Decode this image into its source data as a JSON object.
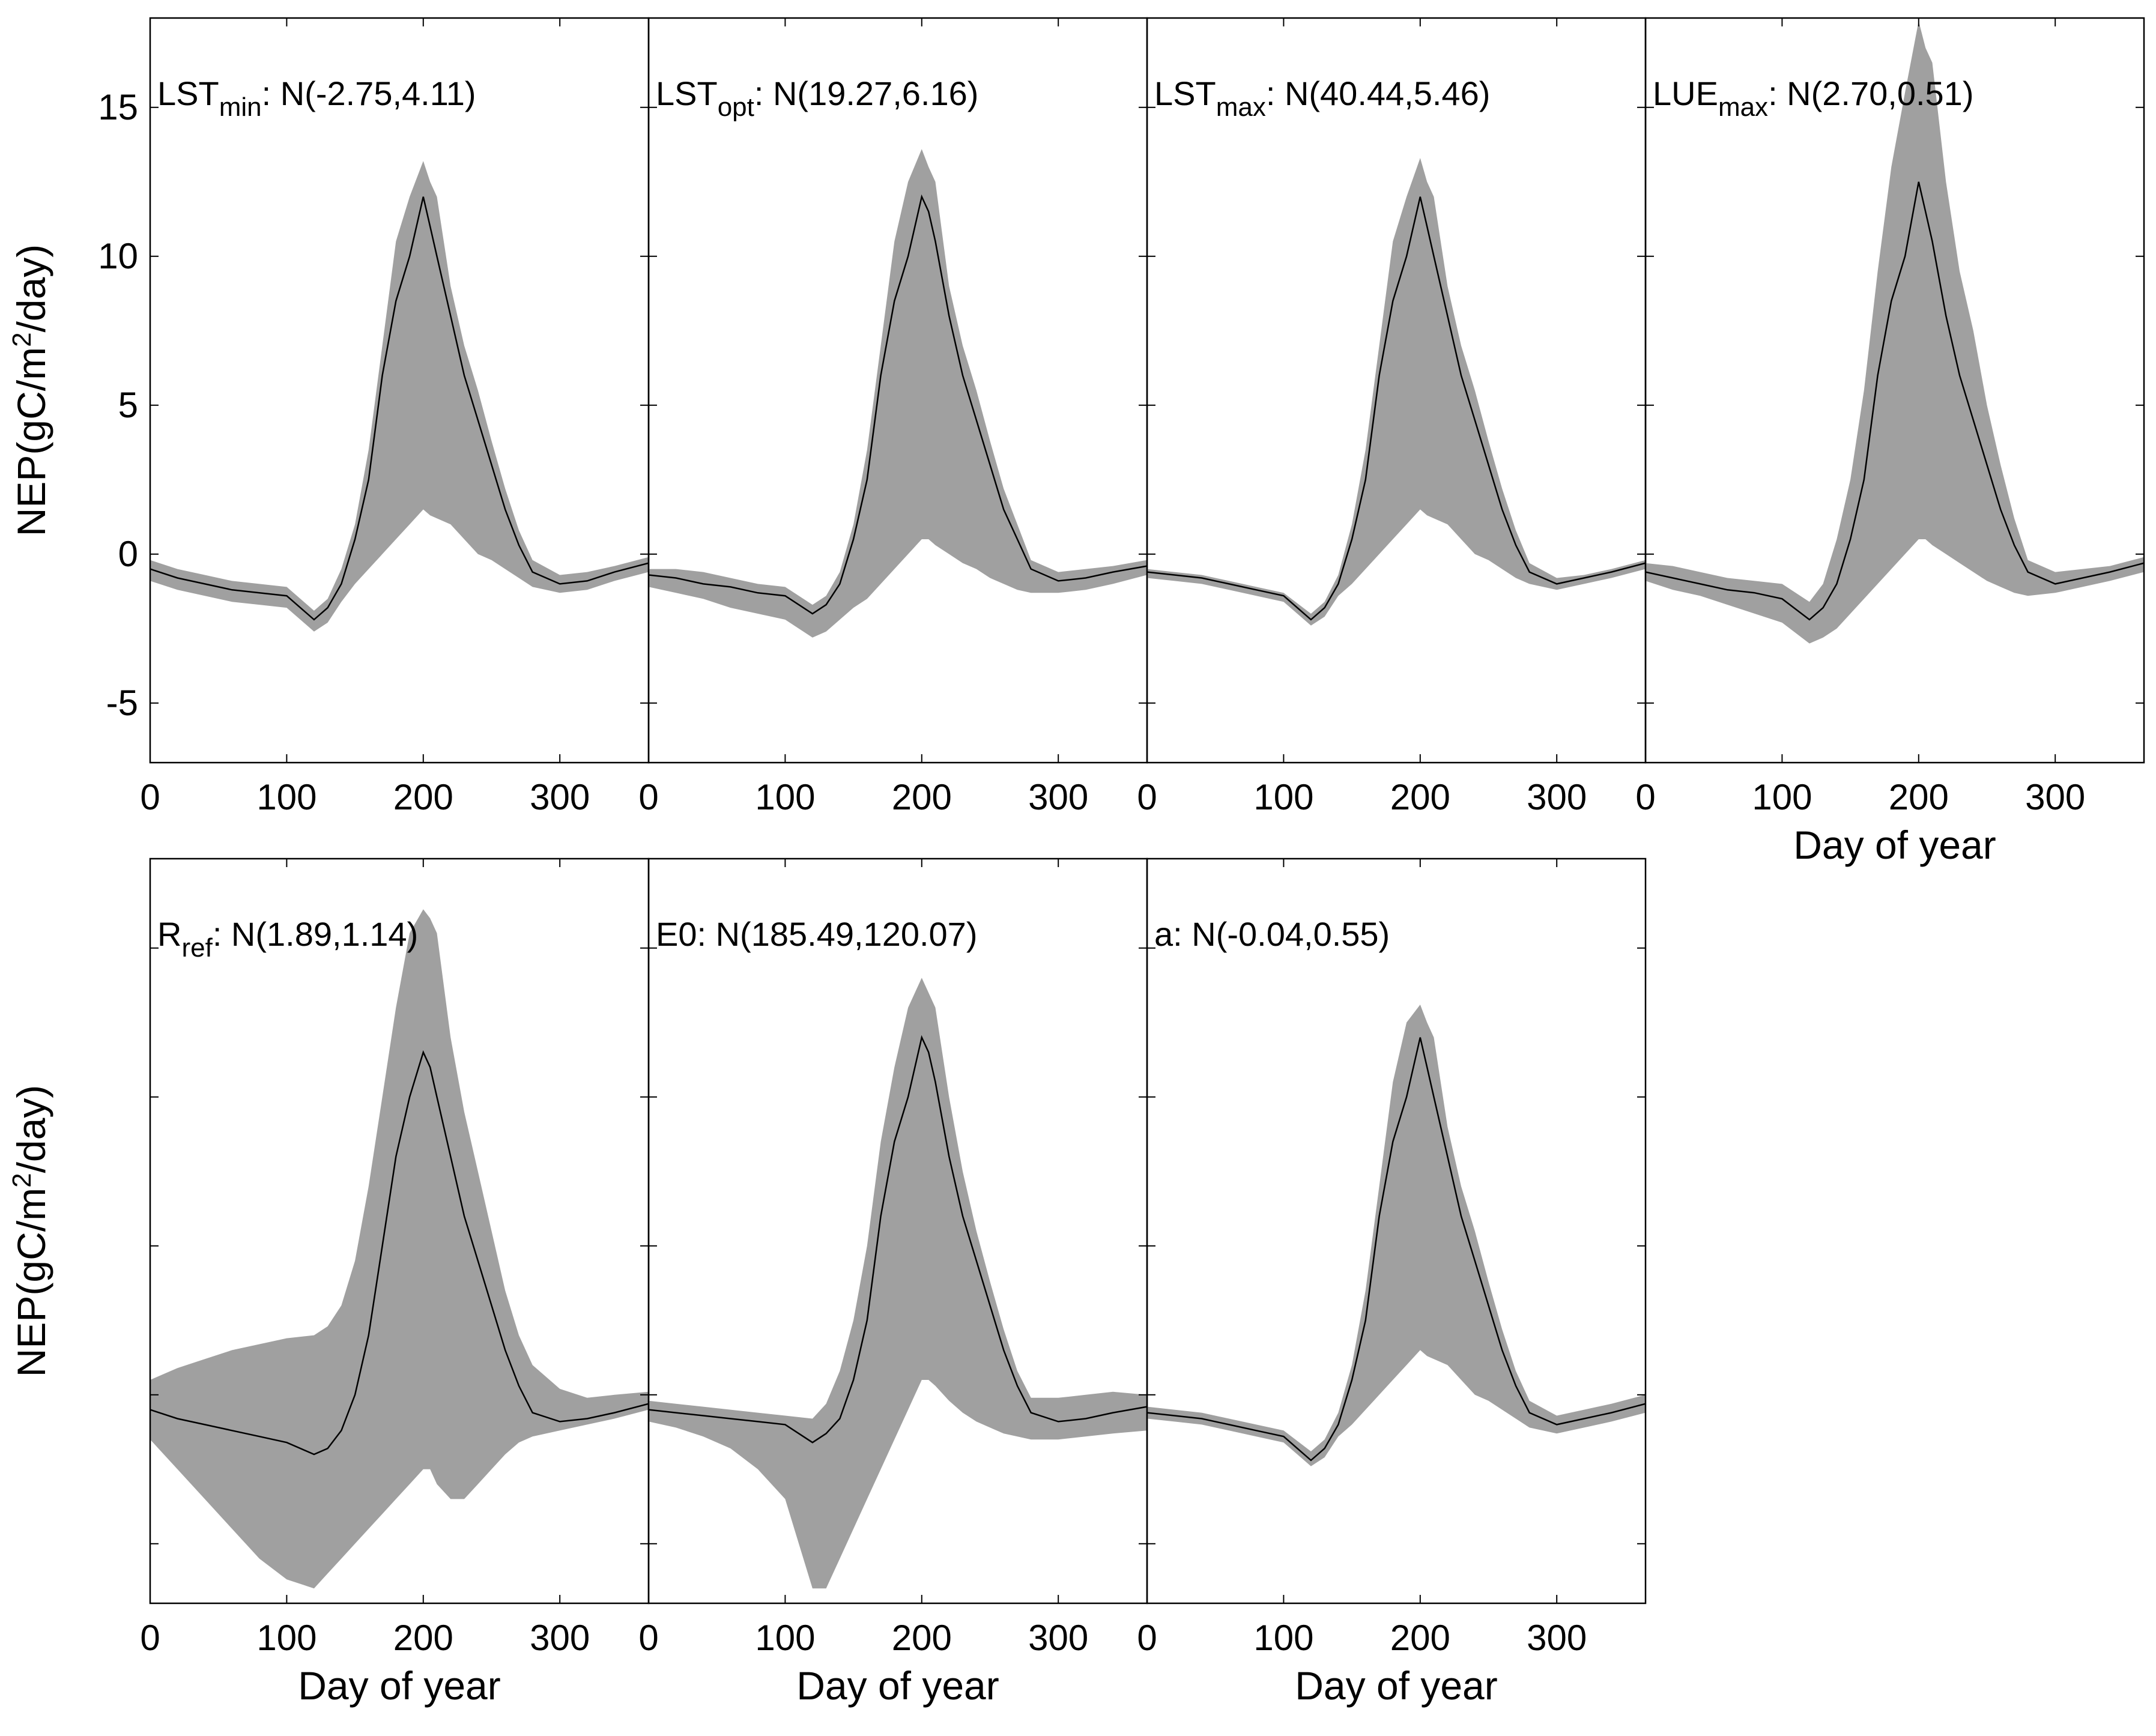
{
  "colors": {
    "band": "#a0a0a0",
    "line": "#000000",
    "frame": "#000000",
    "background": "#ffffff"
  },
  "chart_data": {
    "type": "line",
    "description_note": "7 panels of NEP daily time series with a grey uncertainty band (5th-95th percentile ensemble) and black median line",
    "shared_axes": {
      "xlabel": "Day of year",
      "ylabel": "NEP(gC/m2/day)",
      "xlim": [
        0,
        365
      ],
      "ylim": [
        -7,
        18
      ],
      "xticks": [
        "0",
        "100",
        "200",
        "300"
      ],
      "yticks": [
        "-5",
        "0",
        "5",
        "10",
        "15"
      ]
    },
    "panels": [
      {
        "id": "lst-min",
        "label": {
          "base": "LST",
          "sub": "min",
          "dist": ": N(-2.75,4.11)"
        },
        "series": {
          "x": [
            0,
            20,
            40,
            60,
            80,
            100,
            120,
            130,
            140,
            150,
            160,
            170,
            180,
            190,
            200,
            205,
            210,
            220,
            230,
            240,
            250,
            260,
            270,
            280,
            300,
            320,
            340,
            365
          ],
          "median": [
            -0.5,
            -0.8,
            -1.0,
            -1.2,
            -1.3,
            -1.4,
            -2.2,
            -1.8,
            -1.0,
            0.5,
            2.5,
            6.0,
            8.5,
            10.0,
            12.0,
            11.0,
            10.0,
            8.0,
            6.0,
            4.5,
            3.0,
            1.5,
            0.3,
            -0.6,
            -1.0,
            -0.9,
            -0.6,
            -0.3
          ],
          "band_low": [
            -0.9,
            -1.2,
            -1.4,
            -1.6,
            -1.7,
            -1.8,
            -2.6,
            -2.3,
            -1.6,
            -1.0,
            -0.5,
            0.0,
            0.5,
            1.0,
            1.5,
            1.3,
            1.2,
            1.0,
            0.5,
            0.0,
            -0.2,
            -0.5,
            -0.8,
            -1.1,
            -1.3,
            -1.2,
            -0.9,
            -0.6
          ],
          "band_high": [
            -0.2,
            -0.5,
            -0.7,
            -0.9,
            -1.0,
            -1.1,
            -1.9,
            -1.5,
            -0.5,
            1.0,
            3.5,
            7.0,
            10.5,
            12.0,
            13.2,
            12.5,
            12.0,
            9.0,
            7.0,
            5.5,
            3.8,
            2.2,
            0.8,
            -0.2,
            -0.7,
            -0.6,
            -0.4,
            -0.1
          ]
        }
      },
      {
        "id": "lst-opt",
        "label": {
          "base": "LST",
          "sub": "opt",
          "dist": ": N(19.27,6.16)"
        },
        "series": {
          "x": [
            0,
            20,
            40,
            60,
            80,
            100,
            120,
            130,
            140,
            150,
            160,
            170,
            180,
            190,
            200,
            205,
            210,
            220,
            230,
            240,
            250,
            260,
            270,
            280,
            300,
            320,
            340,
            365
          ],
          "median": [
            -0.7,
            -0.8,
            -1.0,
            -1.1,
            -1.3,
            -1.4,
            -2.0,
            -1.7,
            -1.0,
            0.5,
            2.5,
            6.0,
            8.5,
            10.0,
            12.0,
            11.5,
            10.5,
            8.0,
            6.0,
            4.5,
            3.0,
            1.5,
            0.5,
            -0.5,
            -0.9,
            -0.8,
            -0.6,
            -0.4
          ],
          "band_low": [
            -1.1,
            -1.3,
            -1.5,
            -1.8,
            -2.0,
            -2.2,
            -2.8,
            -2.6,
            -2.2,
            -1.8,
            -1.5,
            -1.0,
            -0.5,
            0.0,
            0.5,
            0.5,
            0.3,
            0.0,
            -0.3,
            -0.5,
            -0.8,
            -1.0,
            -1.2,
            -1.3,
            -1.3,
            -1.2,
            -1.0,
            -0.7
          ],
          "band_high": [
            -0.5,
            -0.5,
            -0.6,
            -0.8,
            -1.0,
            -1.1,
            -1.7,
            -1.4,
            -0.6,
            1.0,
            3.5,
            7.0,
            10.5,
            12.5,
            13.6,
            13.0,
            12.5,
            9.0,
            7.0,
            5.5,
            3.8,
            2.2,
            1.0,
            -0.2,
            -0.6,
            -0.5,
            -0.4,
            -0.2
          ]
        }
      },
      {
        "id": "lst-max",
        "label": {
          "base": "LST",
          "sub": "max",
          "dist": ": N(40.44,5.46)"
        },
        "series": {
          "x": [
            0,
            20,
            40,
            60,
            80,
            100,
            120,
            130,
            140,
            150,
            160,
            170,
            180,
            190,
            200,
            205,
            210,
            220,
            230,
            240,
            250,
            260,
            270,
            280,
            300,
            320,
            340,
            365
          ],
          "median": [
            -0.6,
            -0.7,
            -0.8,
            -1.0,
            -1.2,
            -1.4,
            -2.2,
            -1.8,
            -1.0,
            0.5,
            2.5,
            6.0,
            8.5,
            10.0,
            12.0,
            11.0,
            10.0,
            8.0,
            6.0,
            4.5,
            3.0,
            1.5,
            0.3,
            -0.6,
            -1.0,
            -0.8,
            -0.6,
            -0.3
          ],
          "band_low": [
            -0.8,
            -0.9,
            -1.0,
            -1.2,
            -1.4,
            -1.6,
            -2.4,
            -2.1,
            -1.4,
            -1.0,
            -0.5,
            0.0,
            0.5,
            1.0,
            1.5,
            1.3,
            1.2,
            1.0,
            0.5,
            0.0,
            -0.2,
            -0.5,
            -0.8,
            -1.0,
            -1.2,
            -1.0,
            -0.8,
            -0.5
          ],
          "band_high": [
            -0.5,
            -0.6,
            -0.7,
            -0.9,
            -1.1,
            -1.3,
            -2.0,
            -1.6,
            -0.7,
            1.0,
            3.5,
            7.0,
            10.5,
            12.0,
            13.3,
            12.5,
            12.0,
            9.0,
            7.0,
            5.5,
            3.8,
            2.2,
            0.8,
            -0.3,
            -0.8,
            -0.7,
            -0.5,
            -0.2
          ]
        }
      },
      {
        "id": "lue-max",
        "label": {
          "base": "LUE",
          "sub": "max",
          "dist": ": N(2.70,0.51)"
        },
        "series": {
          "x": [
            0,
            20,
            40,
            60,
            80,
            100,
            120,
            130,
            140,
            150,
            160,
            170,
            180,
            190,
            200,
            205,
            210,
            220,
            230,
            240,
            250,
            260,
            270,
            280,
            300,
            320,
            340,
            365
          ],
          "median": [
            -0.6,
            -0.8,
            -1.0,
            -1.2,
            -1.3,
            -1.5,
            -2.2,
            -1.8,
            -1.0,
            0.5,
            2.5,
            6.0,
            8.5,
            10.0,
            12.5,
            11.5,
            10.5,
            8.0,
            6.0,
            4.5,
            3.0,
            1.5,
            0.3,
            -0.6,
            -1.0,
            -0.8,
            -0.6,
            -0.3
          ],
          "band_low": [
            -0.9,
            -1.2,
            -1.4,
            -1.7,
            -2.0,
            -2.3,
            -3.0,
            -2.8,
            -2.5,
            -2.0,
            -1.5,
            -1.0,
            -0.5,
            0.0,
            0.5,
            0.5,
            0.3,
            0.0,
            -0.3,
            -0.6,
            -0.9,
            -1.1,
            -1.3,
            -1.4,
            -1.3,
            -1.1,
            -0.9,
            -0.6
          ],
          "band_high": [
            -0.3,
            -0.4,
            -0.6,
            -0.8,
            -0.9,
            -1.0,
            -1.6,
            -1.0,
            0.5,
            2.5,
            5.5,
            9.5,
            13.0,
            15.5,
            17.9,
            17.0,
            16.5,
            12.5,
            9.5,
            7.5,
            5.0,
            3.0,
            1.2,
            -0.2,
            -0.6,
            -0.5,
            -0.4,
            -0.1
          ]
        }
      },
      {
        "id": "r-ref",
        "label": {
          "base": "R",
          "sub": "ref",
          "dist": ": N(1.89,1.14)"
        },
        "series": {
          "x": [
            0,
            20,
            40,
            60,
            80,
            100,
            120,
            130,
            140,
            150,
            160,
            170,
            180,
            190,
            200,
            205,
            210,
            220,
            230,
            240,
            250,
            260,
            270,
            280,
            300,
            320,
            340,
            365
          ],
          "median": [
            -0.5,
            -0.8,
            -1.0,
            -1.2,
            -1.4,
            -1.6,
            -2.0,
            -1.8,
            -1.2,
            0.0,
            2.0,
            5.0,
            8.0,
            10.0,
            11.5,
            11.0,
            10.0,
            8.0,
            6.0,
            4.5,
            3.0,
            1.5,
            0.3,
            -0.6,
            -0.9,
            -0.8,
            -0.6,
            -0.3
          ],
          "band_low": [
            -1.5,
            -2.5,
            -3.5,
            -4.5,
            -5.5,
            -6.2,
            -6.5,
            -6.0,
            -5.5,
            -5.0,
            -4.5,
            -4.0,
            -3.5,
            -3.0,
            -2.5,
            -2.5,
            -3.0,
            -3.5,
            -3.5,
            -3.0,
            -2.5,
            -2.0,
            -1.6,
            -1.4,
            -1.2,
            -1.0,
            -0.8,
            -0.5
          ],
          "band_high": [
            0.5,
            0.9,
            1.2,
            1.5,
            1.7,
            1.9,
            2.0,
            2.3,
            3.0,
            4.5,
            7.0,
            10.0,
            13.0,
            15.5,
            16.3,
            16.0,
            15.5,
            12.0,
            9.5,
            7.5,
            5.5,
            3.5,
            2.0,
            1.0,
            0.2,
            -0.1,
            0.0,
            0.1
          ]
        }
      },
      {
        "id": "e0",
        "label": {
          "base": "E0",
          "sub": "",
          "dist": ": N(185.49,120.07)"
        },
        "series": {
          "x": [
            0,
            20,
            40,
            60,
            80,
            100,
            120,
            130,
            140,
            150,
            160,
            170,
            180,
            190,
            200,
            205,
            210,
            220,
            230,
            240,
            250,
            260,
            270,
            280,
            300,
            320,
            340,
            365
          ],
          "median": [
            -0.5,
            -0.6,
            -0.7,
            -0.8,
            -0.9,
            -1.0,
            -1.6,
            -1.3,
            -0.8,
            0.5,
            2.5,
            6.0,
            8.5,
            10.0,
            12.0,
            11.5,
            10.5,
            8.0,
            6.0,
            4.5,
            3.0,
            1.5,
            0.3,
            -0.6,
            -0.9,
            -0.8,
            -0.6,
            -0.4
          ],
          "band_low": [
            -0.9,
            -1.1,
            -1.4,
            -1.8,
            -2.5,
            -3.5,
            -6.5,
            -6.5,
            -5.5,
            -4.5,
            -3.5,
            -2.5,
            -1.5,
            -0.5,
            0.5,
            0.5,
            0.3,
            -0.2,
            -0.6,
            -0.9,
            -1.1,
            -1.3,
            -1.4,
            -1.5,
            -1.5,
            -1.4,
            -1.3,
            -1.2
          ],
          "band_high": [
            -0.2,
            -0.3,
            -0.4,
            -0.5,
            -0.6,
            -0.7,
            -0.8,
            -0.3,
            0.8,
            2.5,
            5.0,
            8.5,
            11.0,
            13.0,
            14.0,
            13.5,
            13.0,
            10.0,
            7.5,
            5.5,
            3.8,
            2.2,
            0.8,
            -0.1,
            -0.1,
            0.0,
            0.1,
            0.0
          ]
        }
      },
      {
        "id": "a",
        "label": {
          "base": "a",
          "sub": "",
          "dist": ": N(-0.04,0.55)"
        },
        "series": {
          "x": [
            0,
            20,
            40,
            60,
            80,
            100,
            120,
            130,
            140,
            150,
            160,
            170,
            180,
            190,
            200,
            205,
            210,
            220,
            230,
            240,
            250,
            260,
            270,
            280,
            300,
            320,
            340,
            365
          ],
          "median": [
            -0.6,
            -0.7,
            -0.8,
            -1.0,
            -1.2,
            -1.4,
            -2.2,
            -1.8,
            -1.0,
            0.5,
            2.5,
            6.0,
            8.5,
            10.0,
            12.0,
            11.0,
            10.0,
            8.0,
            6.0,
            4.5,
            3.0,
            1.5,
            0.3,
            -0.6,
            -1.0,
            -0.8,
            -0.6,
            -0.3
          ],
          "band_low": [
            -0.8,
            -0.9,
            -1.0,
            -1.2,
            -1.4,
            -1.6,
            -2.4,
            -2.1,
            -1.4,
            -1.0,
            -0.5,
            0.0,
            0.5,
            1.0,
            1.5,
            1.3,
            1.2,
            1.0,
            0.5,
            0.0,
            -0.2,
            -0.5,
            -0.8,
            -1.1,
            -1.3,
            -1.1,
            -0.9,
            -0.6
          ],
          "band_high": [
            -0.4,
            -0.5,
            -0.6,
            -0.8,
            -1.0,
            -1.2,
            -1.9,
            -1.5,
            -0.6,
            1.0,
            3.5,
            7.0,
            10.5,
            12.5,
            13.1,
            12.5,
            12.0,
            9.0,
            7.0,
            5.5,
            3.8,
            2.2,
            0.8,
            -0.2,
            -0.7,
            -0.5,
            -0.3,
            0.0
          ]
        }
      }
    ]
  }
}
